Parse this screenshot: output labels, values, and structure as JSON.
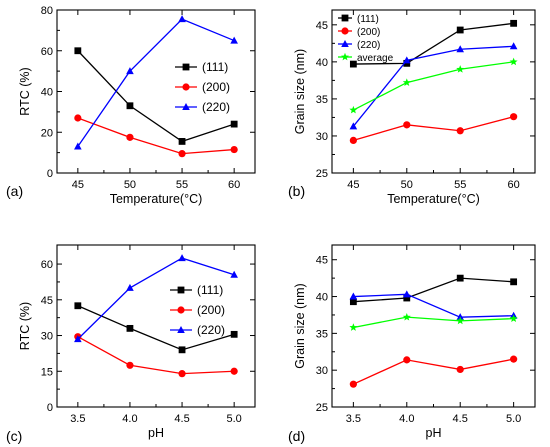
{
  "chart_data": [
    {
      "panel_label": "(a)",
      "type": "line",
      "xlabel": "Temperature(°C)",
      "ylabel": "RTC (%)",
      "x": [
        45,
        50,
        55,
        60
      ],
      "xticks": [
        "45",
        "50",
        "55",
        "60"
      ],
      "xlim": [
        43,
        62
      ],
      "ylim": [
        0,
        80
      ],
      "yticks": [
        "0",
        "20",
        "40",
        "60",
        "80"
      ],
      "legend": "right-center",
      "series": [
        {
          "name": "(111)",
          "color": "#000000",
          "marker": "square",
          "values": [
            60,
            33,
            15.5,
            24
          ]
        },
        {
          "name": "(200)",
          "color": "#ff0000",
          "marker": "circle",
          "values": [
            27,
            17.5,
            9.5,
            11.5
          ]
        },
        {
          "name": "(220)",
          "color": "#0000ff",
          "marker": "triangle",
          "values": [
            13,
            50,
            75.5,
            65
          ]
        }
      ]
    },
    {
      "panel_label": "(b)",
      "type": "line",
      "xlabel": "Temperature(°C)",
      "ylabel": "Grain size (nm)",
      "x": [
        45,
        50,
        55,
        60
      ],
      "xticks": [
        "45",
        "50",
        "55",
        "60"
      ],
      "xlim": [
        43,
        62
      ],
      "ylim": [
        25,
        47
      ],
      "yticks": [
        "25",
        "30",
        "35",
        "40",
        "45"
      ],
      "legend": "top-left",
      "series": [
        {
          "name": "(111)",
          "color": "#000000",
          "marker": "square",
          "values": [
            39.7,
            39.8,
            44.3,
            45.2
          ]
        },
        {
          "name": "(200)",
          "color": "#ff0000",
          "marker": "circle",
          "values": [
            29.4,
            31.5,
            30.7,
            32.6
          ]
        },
        {
          "name": "(220)",
          "color": "#0000ff",
          "marker": "triangle",
          "values": [
            31.3,
            40.2,
            41.7,
            42.1
          ]
        },
        {
          "name": "average",
          "color": "#00ff00",
          "marker": "star",
          "values": [
            33.5,
            37.2,
            39.0,
            40.0
          ]
        }
      ]
    },
    {
      "panel_label": "(c)",
      "type": "line",
      "xlabel": "pH",
      "ylabel": "RTC (%)",
      "x": [
        3.5,
        4.0,
        4.5,
        5.0
      ],
      "xticks": [
        "3.5",
        "4.0",
        "4.5",
        "5.0"
      ],
      "xlim": [
        3.3,
        5.2
      ],
      "ylim": [
        0,
        68
      ],
      "yticks": [
        "0",
        "15",
        "30",
        "45",
        "60"
      ],
      "legend": "right-center",
      "series": [
        {
          "name": "(111)",
          "color": "#000000",
          "marker": "square",
          "values": [
            42.5,
            33,
            24,
            30.5
          ]
        },
        {
          "name": "(200)",
          "color": "#ff0000",
          "marker": "circle",
          "values": [
            29.5,
            17.5,
            14,
            15
          ]
        },
        {
          "name": "(220)",
          "color": "#0000ff",
          "marker": "triangle",
          "values": [
            28.5,
            50,
            62.5,
            55.5
          ]
        }
      ]
    },
    {
      "panel_label": "(d)",
      "type": "line",
      "xlabel": "pH",
      "ylabel": "Grain size (nm)",
      "x": [
        3.5,
        4.0,
        4.5,
        5.0
      ],
      "xticks": [
        "3.5",
        "4.0",
        "4.5",
        "5.0"
      ],
      "xlim": [
        3.3,
        5.2
      ],
      "ylim": [
        25,
        47
      ],
      "yticks": [
        "25",
        "30",
        "35",
        "40",
        "45"
      ],
      "legend": "none",
      "series": [
        {
          "color": "#000000",
          "marker": "square",
          "values": [
            39.3,
            39.8,
            42.5,
            42.0
          ]
        },
        {
          "color": "#ff0000",
          "marker": "circle",
          "values": [
            28.1,
            31.4,
            30.1,
            31.5
          ]
        },
        {
          "color": "#0000ff",
          "marker": "triangle",
          "values": [
            40.0,
            40.3,
            37.2,
            37.4
          ]
        },
        {
          "color": "#00ff00",
          "marker": "star",
          "values": [
            35.8,
            37.2,
            36.7,
            37.0
          ]
        }
      ]
    }
  ]
}
